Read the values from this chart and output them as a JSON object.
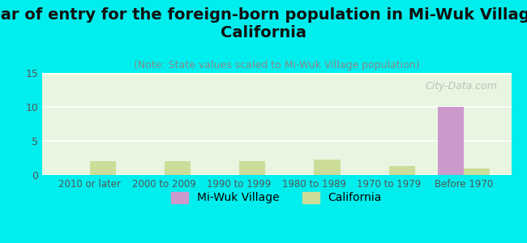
{
  "title": "Year of entry for the foreign-born population in Mi-Wuk Village,\nCalifornia",
  "subtitle": "(Note: State values scaled to Mi-Wuk Village population)",
  "categories": [
    "2010 or later",
    "2000 to 2009",
    "1990 to 1999",
    "1980 to 1989",
    "1970 to 1979",
    "Before 1970"
  ],
  "miwuk_values": [
    0,
    0,
    0,
    0,
    0,
    10
  ],
  "california_values": [
    2,
    2,
    2,
    2.3,
    1.3,
    1
  ],
  "miwuk_color": "#cc99cc",
  "california_color": "#ccdd99",
  "background_color": "#00eeee",
  "plot_bg_color_top": "#e8f5e0",
  "plot_bg_color_bottom": "#f5faf0",
  "ylim": [
    0,
    15
  ],
  "yticks": [
    0,
    5,
    10,
    15
  ],
  "bar_width": 0.35,
  "watermark": "City-Data.com",
  "title_fontsize": 14,
  "subtitle_fontsize": 9,
  "legend_fontsize": 10
}
